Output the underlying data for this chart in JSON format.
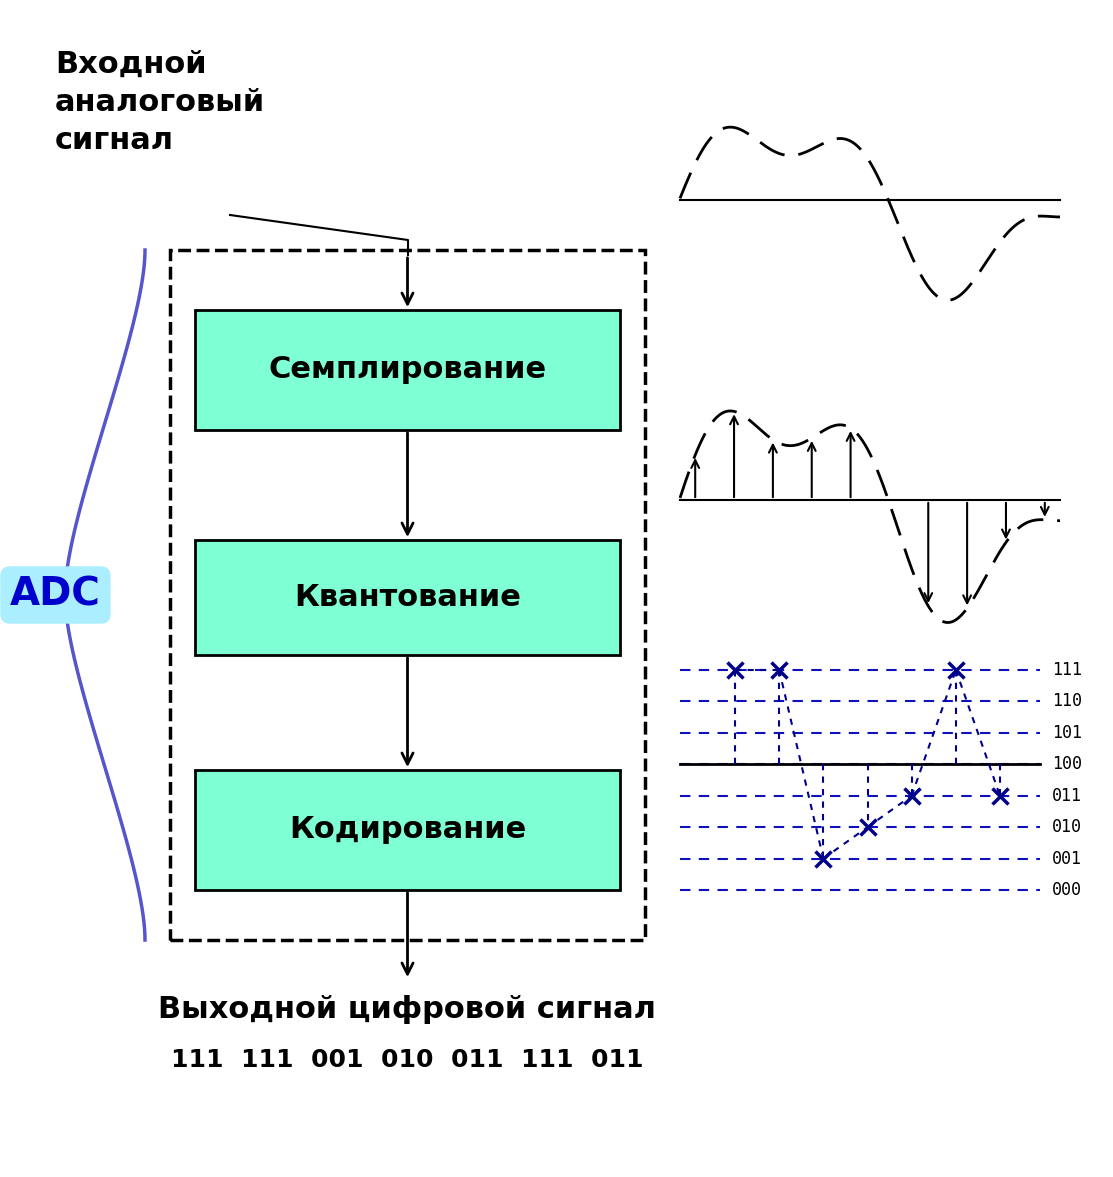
{
  "title_input": "Входной\nаналоговый\nсигнал",
  "title_output": "Выходной цифровой сигнал",
  "output_code": "111  111  001  010  011  111  011",
  "box1_label": "Семплирование",
  "box2_label": "Квантование",
  "box3_label": "Кодирование",
  "adc_label": "ADC",
  "box_color": "#7fffd4",
  "box_edge_color": "#000000",
  "adc_bg": "#aaeeff",
  "adc_text_color": "#0000cc",
  "dashed_rect_color": "#000000",
  "brace_color": "#5555cc",
  "quant_levels": [
    "111",
    "110",
    "101",
    "100",
    "011",
    "010",
    "001",
    "000"
  ],
  "quant_dot_color": "#00008b",
  "quant_line_color": "#1111bb",
  "background": "#ffffff",
  "fig_width": 11.13,
  "fig_height": 11.77,
  "dpi": 100
}
